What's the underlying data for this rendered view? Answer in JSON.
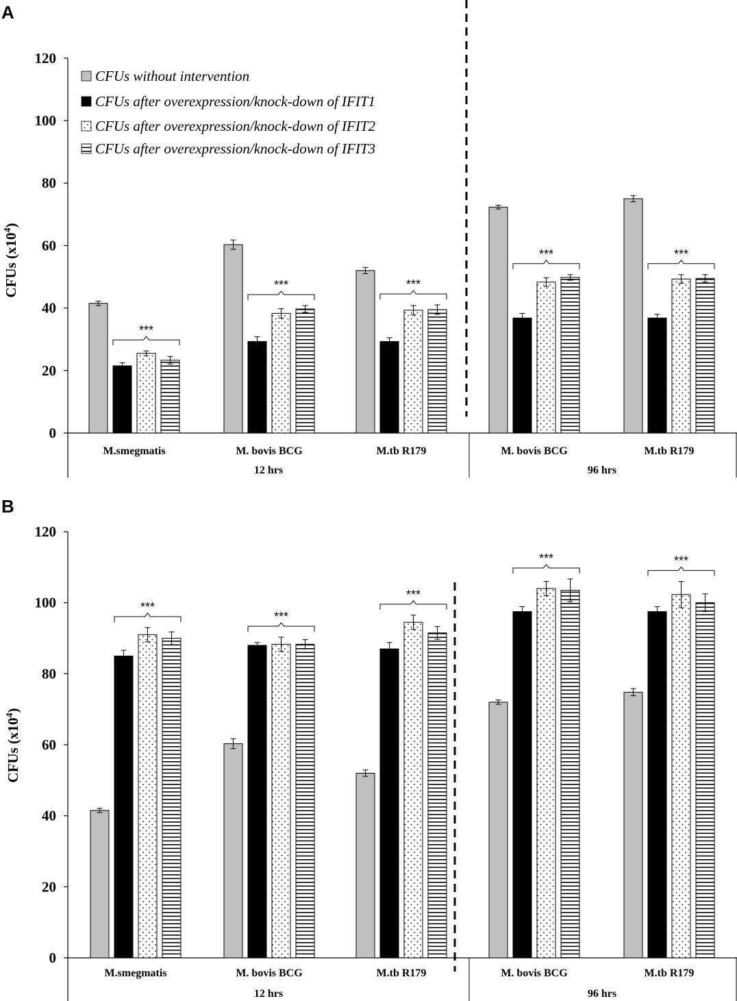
{
  "legend": [
    "CFUs without intervention",
    "CFUs after overexpression/knock-down of IFIT1",
    "CFUs after overexpression/knock-down of IFIT2",
    "CFUs after overexpression/knock-down of IFIT3"
  ],
  "colors": {
    "gray": "#c0c0c0",
    "black": "#000000",
    "axis": "#000000"
  },
  "chart_data": [
    {
      "panel": "A",
      "type": "bar",
      "ylabel": "CFUs (x10",
      "ylabel_sup": "4",
      "ylabel_close": ")",
      "ylim": [
        0,
        120
      ],
      "yticks": [
        0,
        20,
        40,
        60,
        80,
        100,
        120
      ],
      "categories": [
        "M.smegmatis",
        "M. bovis BCG",
        "M.tb R179",
        "M. bovis BCG",
        "M.tb R179"
      ],
      "groups": [
        {
          "label": "12 hrs",
          "n": 3
        },
        {
          "label": "96 hrs",
          "n": 2
        }
      ],
      "series": [
        {
          "name": "CFUs without intervention",
          "values": [
            41.5,
            60.3,
            52.0,
            72.3,
            75.0
          ],
          "errors": [
            0.7,
            1.5,
            1.0,
            0.6,
            1.0
          ]
        },
        {
          "name": "CFUs after overexpression/knock-down of IFIT1",
          "values": [
            21.5,
            29.3,
            29.3,
            36.8,
            36.8
          ],
          "errors": [
            1.0,
            1.5,
            1.2,
            1.5,
            1.2
          ]
        },
        {
          "name": "CFUs after overexpression/knock-down of IFIT2",
          "values": [
            25.5,
            38.3,
            39.3,
            48.3,
            49.3
          ],
          "errors": [
            0.8,
            1.5,
            1.5,
            1.4,
            1.4
          ]
        },
        {
          "name": "CFUs after overexpression/knock-down of IFIT3",
          "values": [
            23.3,
            39.7,
            39.5,
            49.8,
            49.5
          ],
          "errors": [
            1.2,
            1.1,
            1.5,
            0.9,
            1.2
          ]
        }
      ],
      "significance": "***"
    },
    {
      "panel": "B",
      "type": "bar",
      "ylabel": "CFUs (x10",
      "ylabel_sup": "4",
      "ylabel_close": ")",
      "ylim": [
        0,
        120
      ],
      "yticks": [
        0,
        20,
        40,
        60,
        80,
        100,
        120
      ],
      "categories": [
        "M.smegmatis",
        "M. bovis BCG",
        "M.tb R179",
        "M. bovis BCG",
        "M.tb R179"
      ],
      "groups": [
        {
          "label": "12 hrs",
          "n": 3
        },
        {
          "label": "96 hrs",
          "n": 2
        }
      ],
      "series": [
        {
          "name": "CFUs without intervention",
          "values": [
            41.5,
            60.3,
            52.0,
            72.0,
            74.8
          ],
          "errors": [
            0.6,
            1.4,
            0.9,
            0.6,
            1.0
          ]
        },
        {
          "name": "CFUs after overexpression/knock-down of IFIT1",
          "values": [
            85.0,
            88.0,
            87.0,
            97.5,
            97.5
          ],
          "errors": [
            1.6,
            0.8,
            1.8,
            1.4,
            1.4
          ]
        },
        {
          "name": "CFUs after overexpression/knock-down of IFIT2",
          "values": [
            91.0,
            88.3,
            94.5,
            104.0,
            102.3
          ],
          "errors": [
            2.0,
            2.0,
            2.0,
            2.0,
            3.7
          ]
        },
        {
          "name": "CFUs after overexpression/knock-down of IFIT3",
          "values": [
            90.0,
            88.3,
            91.5,
            103.5,
            100.0
          ],
          "errors": [
            1.8,
            1.3,
            1.8,
            3.2,
            2.5
          ]
        }
      ],
      "significance": "***"
    }
  ]
}
